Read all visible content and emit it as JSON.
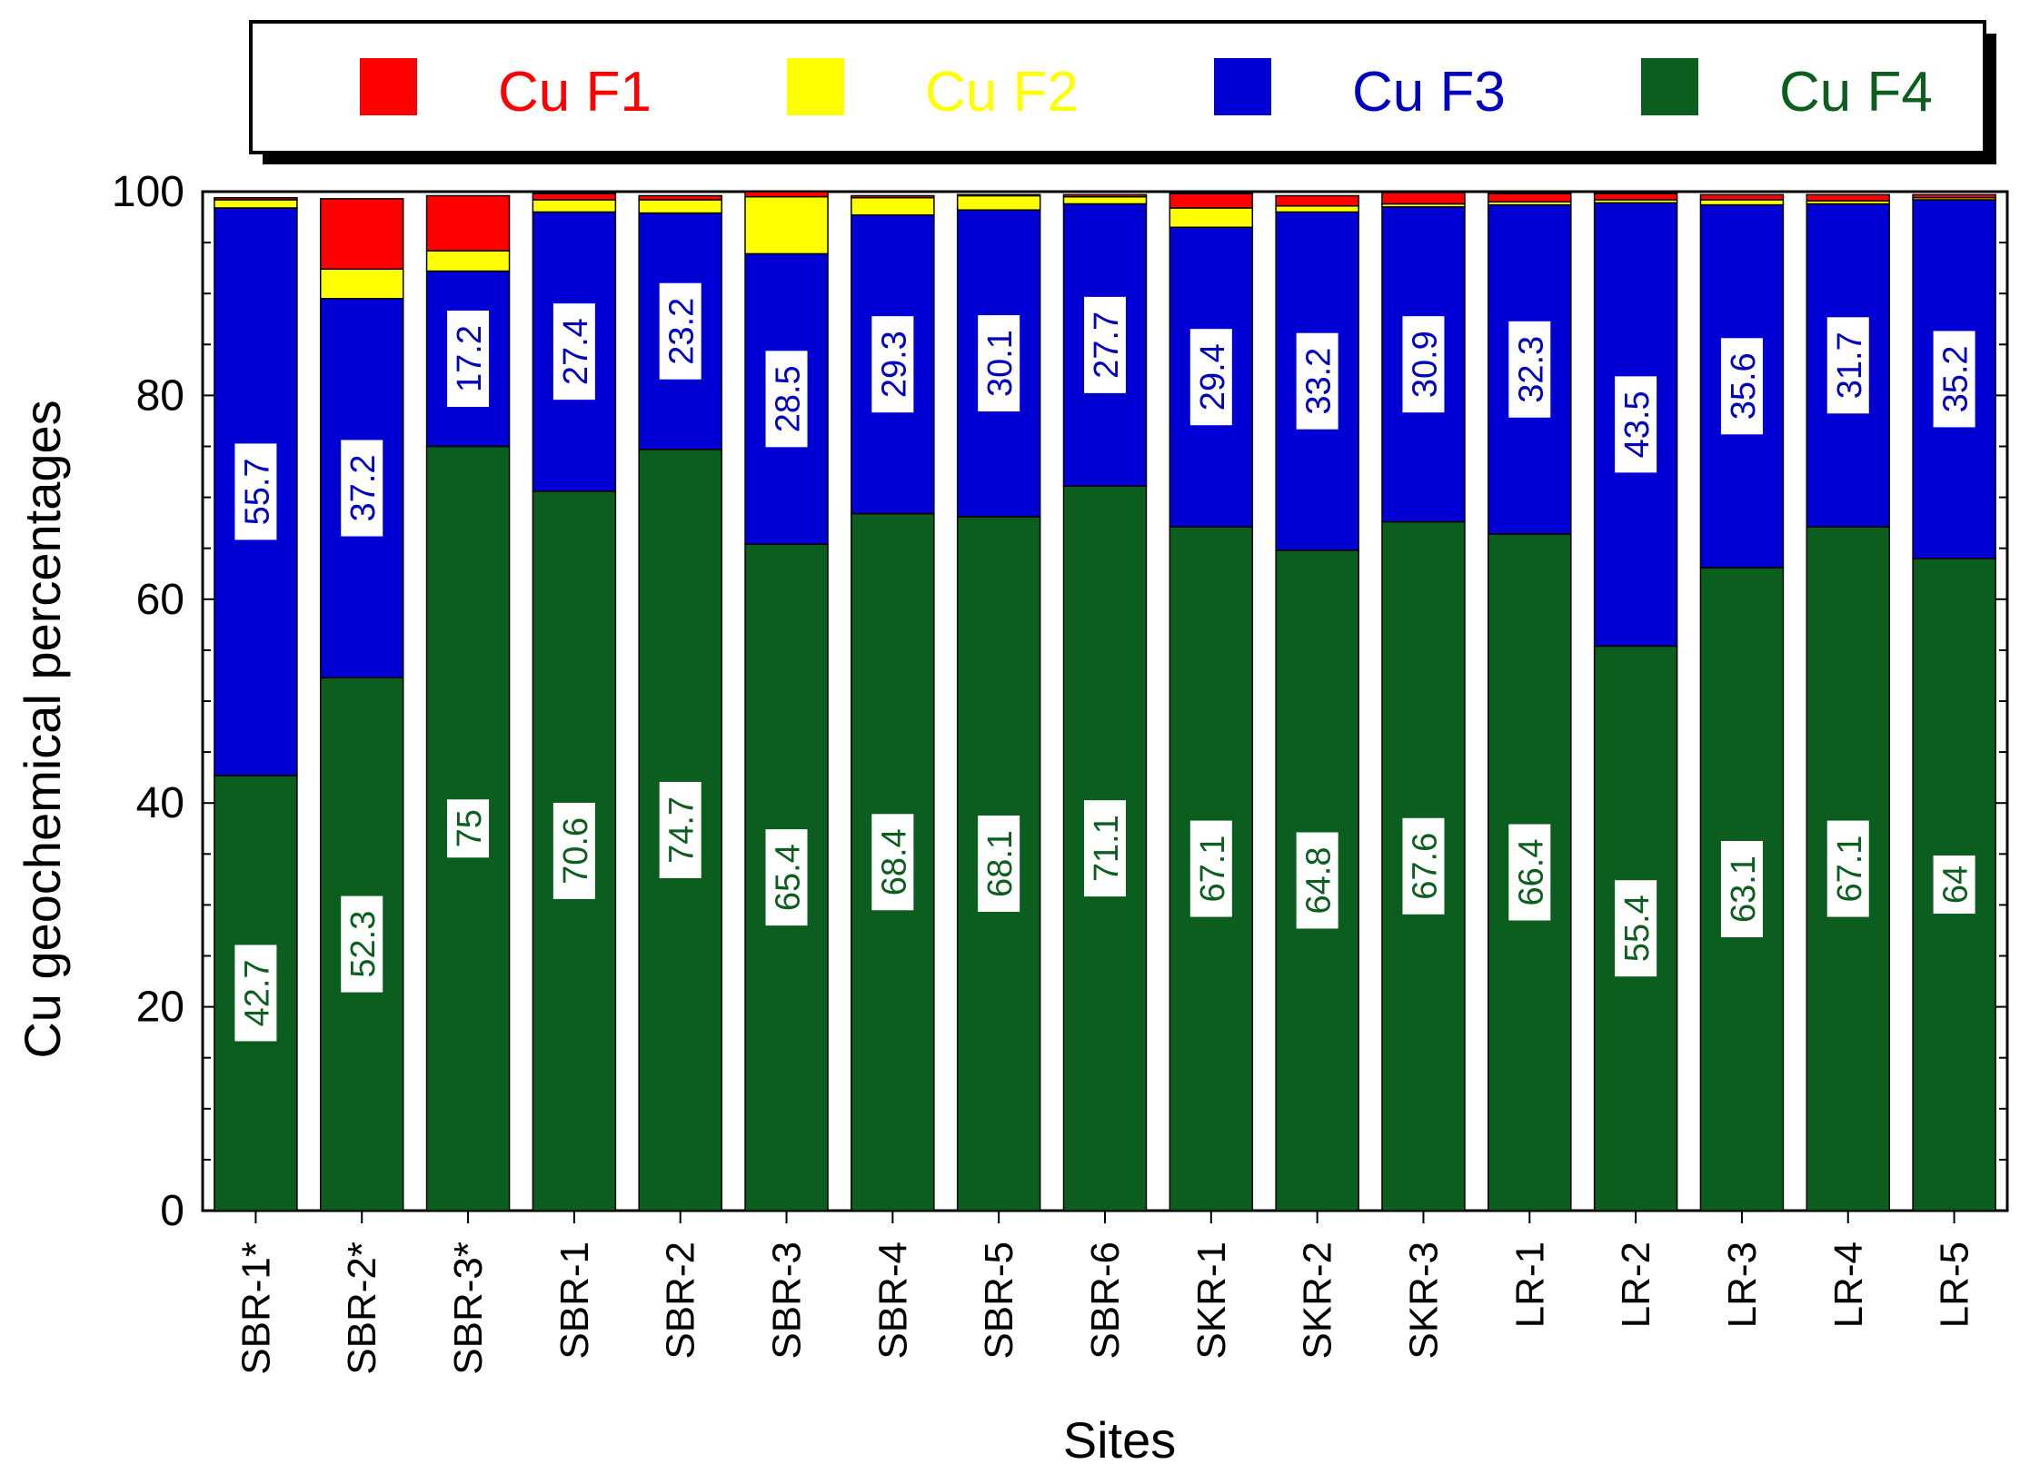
{
  "chart_data": {
    "type": "bar",
    "stacked": true,
    "title": "",
    "xlabel": "Sites",
    "ylabel": "Cu geochemical percentages",
    "ylim": [
      0,
      100
    ],
    "yticks": [
      0,
      20,
      40,
      60,
      80,
      100
    ],
    "legend_position": "top",
    "categories": [
      "SBR-1*",
      "SBR-2*",
      "SBR-3*",
      "SBR-1",
      "SBR-2",
      "SBR-3",
      "SBR-4",
      "SBR-5",
      "SBR-6",
      "SKR-1",
      "SKR-2",
      "SKR-3",
      "LR-1",
      "LR-2",
      "LR-3",
      "LR-4",
      "LR-5"
    ],
    "series": [
      {
        "name": "Cu F4",
        "color": "#0b5e1e",
        "label_color": "#0b5e1e",
        "values": [
          42.7,
          52.3,
          75,
          70.6,
          74.7,
          65.4,
          68.4,
          68.1,
          71.1,
          67.1,
          64.8,
          67.6,
          66.4,
          55.4,
          63.1,
          67.1,
          64
        ],
        "labels": [
          "42.7",
          "52.3",
          "75",
          "70.6",
          "74.7",
          "65.4",
          "68.4",
          "68.1",
          "71.1",
          "67.1",
          "64.8",
          "67.6",
          "66.4",
          "55.4",
          "63.1",
          "67.1",
          "64"
        ]
      },
      {
        "name": "Cu F3",
        "color": "#0000d4",
        "label_color": "#0000c0",
        "values": [
          55.7,
          37.2,
          17.2,
          27.4,
          23.2,
          28.5,
          29.3,
          30.1,
          27.7,
          29.4,
          33.2,
          30.9,
          32.3,
          43.5,
          35.6,
          31.7,
          35.2
        ],
        "labels": [
          "55.7",
          "37.2",
          "17.2",
          "27.4",
          "23.2",
          "28.5",
          "29.3",
          "30.1",
          "27.7",
          "29.4",
          "33.2",
          "30.9",
          "32.3",
          "43.5",
          "35.6",
          "31.7",
          "35.2"
        ]
      },
      {
        "name": "Cu F2",
        "color": "#ffff00",
        "label_color": "#ffff00",
        "values": [
          0.8,
          2.9,
          2.0,
          1.2,
          1.3,
          5.6,
          1.7,
          1.4,
          0.7,
          1.9,
          0.6,
          0.3,
          0.3,
          0.3,
          0.5,
          0.3,
          0.2
        ]
      },
      {
        "name": "Cu F1",
        "color": "#ff0000",
        "label_color": "#ff0000",
        "values": [
          0.2,
          6.9,
          5.4,
          0.6,
          0.4,
          0.5,
          0.2,
          0.1,
          0.2,
          1.4,
          1.0,
          1.1,
          0.8,
          0.6,
          0.5,
          0.6,
          0.3
        ]
      }
    ],
    "legend_order": [
      "Cu F1",
      "Cu F2",
      "Cu F3",
      "Cu F4"
    ]
  }
}
